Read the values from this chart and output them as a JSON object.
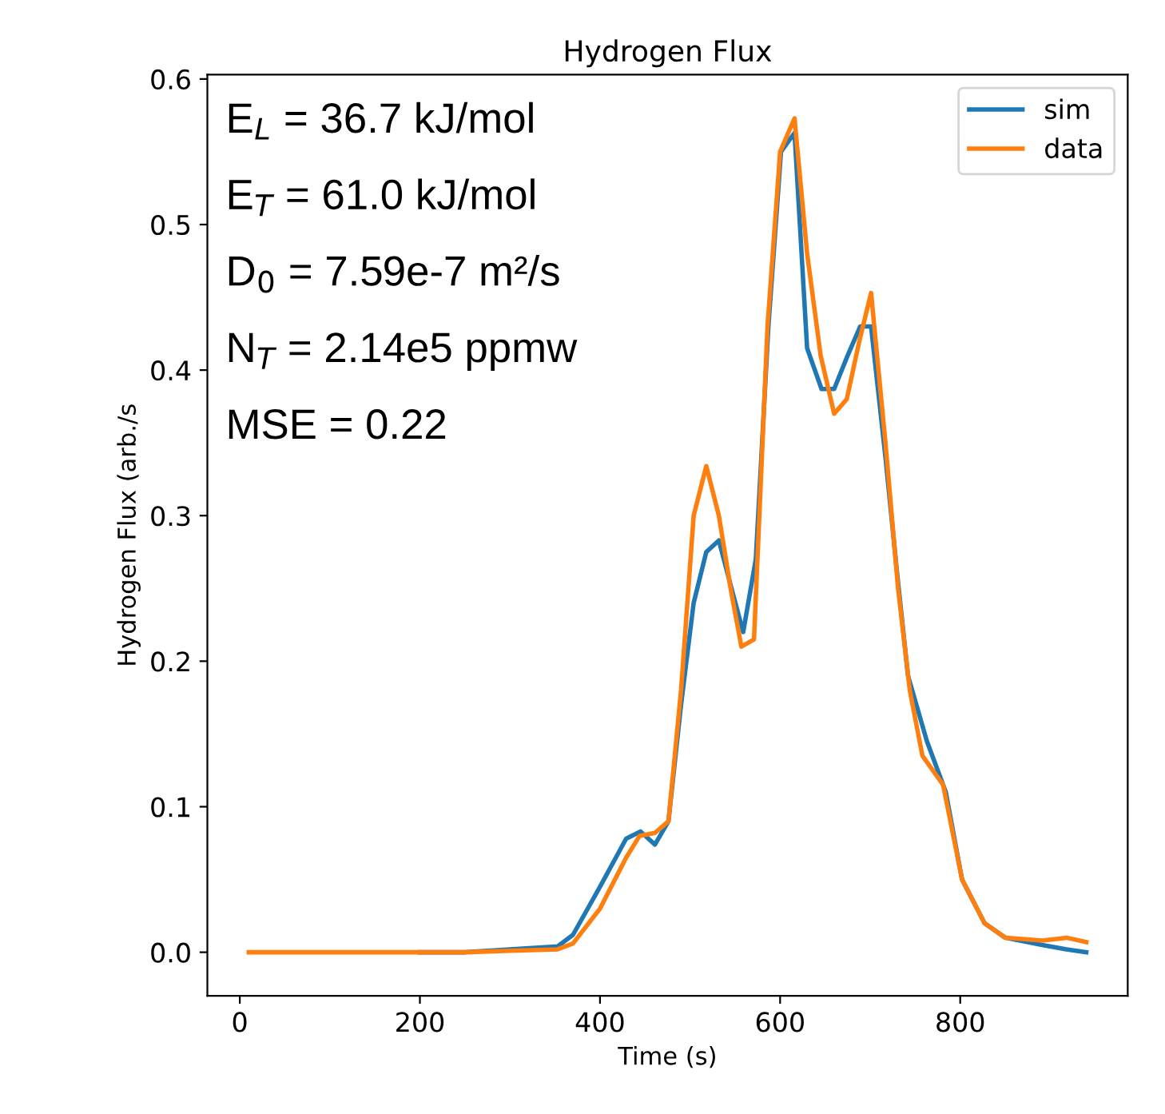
{
  "chart_data": {
    "type": "line",
    "title": "Hydrogen Flux",
    "xlabel": "Time (s)",
    "ylabel": "Hydrogen Flux (arb./s",
    "xlim": [
      -36,
      986
    ],
    "xticks": [
      0,
      200,
      400,
      600,
      800
    ],
    "ylim": [
      -0.03,
      0.603
    ],
    "yticks": [
      {
        "value": 0,
        "label": "0.0"
      },
      {
        "value": 0.1,
        "label": "0.1"
      },
      {
        "value": 0.2,
        "label": "0.2"
      },
      {
        "value": 0.3,
        "label": "0.3"
      },
      {
        "value": 0.4,
        "label": "0.4"
      },
      {
        "value": 0.5,
        "label": "0.5"
      },
      {
        "value": 0.6,
        "label": "0.6"
      }
    ],
    "legend": "top right",
    "grid": false,
    "annotations": [
      "E$_{L}$ = 36.7 kJ/mol",
      "E$_{T}$ = 61.0 kJ/mol",
      "D$_{0}$ = 7.59e-7 m²/s",
      "N$_{T}$ = 2.14e5 ppmw",
      "MSE = 0.22"
    ],
    "series": [
      {
        "name": "sim",
        "color": "#1f77b4",
        "x": [
          200,
          250,
          300,
          353,
          370,
          400,
          429,
          445,
          461,
          476,
          490,
          504,
          518,
          532,
          546,
          559,
          573,
          587,
          601,
          616,
          630,
          646,
          660,
          675,
          689,
          701,
          717,
          730,
          742,
          763,
          784,
          802,
          827,
          850,
          891,
          918,
          940
        ],
        "values": [
          0.0,
          0.0,
          0.002,
          0.004,
          0.012,
          0.045,
          0.078,
          0.083,
          0.074,
          0.09,
          0.17,
          0.24,
          0.275,
          0.283,
          0.25,
          0.22,
          0.27,
          0.43,
          0.55,
          0.563,
          0.415,
          0.387,
          0.387,
          0.41,
          0.43,
          0.43,
          0.34,
          0.26,
          0.19,
          0.145,
          0.11,
          0.05,
          0.02,
          0.01,
          0.005,
          0.002,
          0.0
        ]
      },
      {
        "name": "data",
        "color": "#ff7f0e",
        "x": [
          10,
          100,
          200,
          250,
          300,
          353,
          370,
          400,
          429,
          444,
          461,
          476,
          490,
          504,
          518,
          532,
          545,
          557,
          571,
          586,
          600,
          616,
          630,
          645,
          660,
          674,
          688,
          701,
          717,
          731,
          744,
          758,
          781,
          802,
          827,
          850,
          891,
          918,
          940
        ],
        "values": [
          0.0,
          0.0,
          0.0,
          0.0,
          0.001,
          0.002,
          0.006,
          0.03,
          0.065,
          0.08,
          0.082,
          0.09,
          0.18,
          0.3,
          0.334,
          0.3,
          0.25,
          0.21,
          0.215,
          0.43,
          0.55,
          0.573,
          0.48,
          0.41,
          0.37,
          0.38,
          0.42,
          0.453,
          0.35,
          0.25,
          0.18,
          0.135,
          0.115,
          0.05,
          0.02,
          0.01,
          0.008,
          0.01,
          0.007
        ]
      }
    ]
  }
}
